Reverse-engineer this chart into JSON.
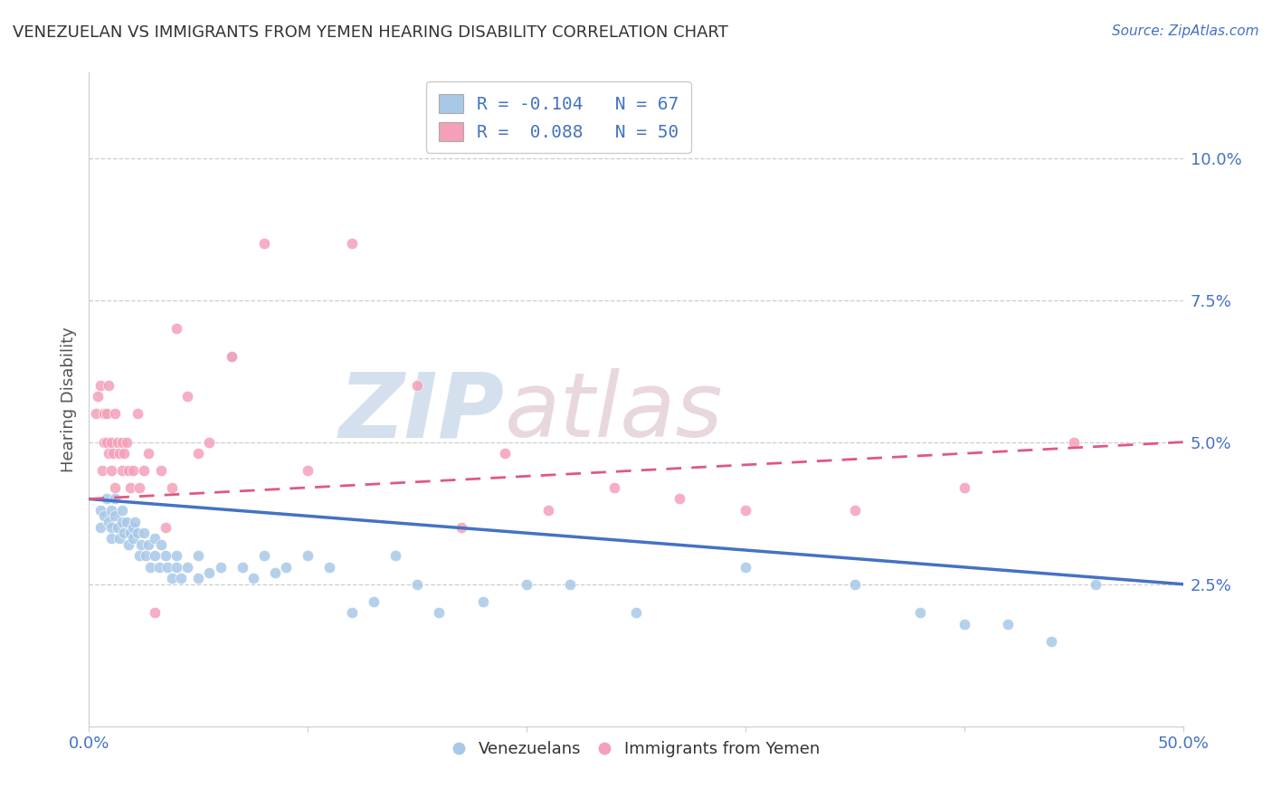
{
  "title": "VENEZUELAN VS IMMIGRANTS FROM YEMEN HEARING DISABILITY CORRELATION CHART",
  "source": "Source: ZipAtlas.com",
  "ylabel": "Hearing Disability",
  "right_yticks": [
    "2.5%",
    "5.0%",
    "7.5%",
    "10.0%"
  ],
  "right_ytick_vals": [
    0.025,
    0.05,
    0.075,
    0.1
  ],
  "xlim": [
    0.0,
    0.5
  ],
  "ylim": [
    0.0,
    0.115
  ],
  "legend_label1": "R = -0.104   N = 67",
  "legend_label2": "R =  0.088   N = 50",
  "legend_bottom_label1": "Venezuelans",
  "legend_bottom_label2": "Immigrants from Yemen",
  "blue_color": "#a8c8e8",
  "pink_color": "#f4a0b8",
  "blue_line_color": "#4472c4",
  "pink_line_color": "#e05880",
  "venezuelan_x": [
    0.005,
    0.005,
    0.007,
    0.008,
    0.009,
    0.01,
    0.01,
    0.01,
    0.012,
    0.012,
    0.013,
    0.014,
    0.015,
    0.015,
    0.016,
    0.017,
    0.018,
    0.019,
    0.02,
    0.02,
    0.021,
    0.022,
    0.023,
    0.024,
    0.025,
    0.026,
    0.027,
    0.028,
    0.03,
    0.03,
    0.032,
    0.033,
    0.035,
    0.036,
    0.038,
    0.04,
    0.04,
    0.042,
    0.045,
    0.05,
    0.05,
    0.055,
    0.06,
    0.065,
    0.07,
    0.075,
    0.08,
    0.085,
    0.09,
    0.1,
    0.11,
    0.12,
    0.13,
    0.14,
    0.15,
    0.16,
    0.18,
    0.2,
    0.22,
    0.25,
    0.3,
    0.35,
    0.38,
    0.4,
    0.42,
    0.44,
    0.46
  ],
  "venezuelan_y": [
    0.038,
    0.035,
    0.037,
    0.04,
    0.036,
    0.038,
    0.033,
    0.035,
    0.037,
    0.04,
    0.035,
    0.033,
    0.036,
    0.038,
    0.034,
    0.036,
    0.032,
    0.034,
    0.035,
    0.033,
    0.036,
    0.034,
    0.03,
    0.032,
    0.034,
    0.03,
    0.032,
    0.028,
    0.033,
    0.03,
    0.028,
    0.032,
    0.03,
    0.028,
    0.026,
    0.028,
    0.03,
    0.026,
    0.028,
    0.03,
    0.026,
    0.027,
    0.028,
    0.065,
    0.028,
    0.026,
    0.03,
    0.027,
    0.028,
    0.03,
    0.028,
    0.02,
    0.022,
    0.03,
    0.025,
    0.02,
    0.022,
    0.025,
    0.025,
    0.02,
    0.028,
    0.025,
    0.02,
    0.018,
    0.018,
    0.015,
    0.025
  ],
  "yemen_x": [
    0.003,
    0.004,
    0.005,
    0.006,
    0.007,
    0.007,
    0.008,
    0.008,
    0.009,
    0.009,
    0.01,
    0.01,
    0.011,
    0.012,
    0.012,
    0.013,
    0.014,
    0.015,
    0.015,
    0.016,
    0.017,
    0.018,
    0.019,
    0.02,
    0.022,
    0.023,
    0.025,
    0.027,
    0.03,
    0.033,
    0.035,
    0.038,
    0.04,
    0.045,
    0.05,
    0.055,
    0.065,
    0.08,
    0.1,
    0.12,
    0.15,
    0.17,
    0.19,
    0.21,
    0.24,
    0.27,
    0.3,
    0.35,
    0.4,
    0.45
  ],
  "yemen_y": [
    0.055,
    0.058,
    0.06,
    0.045,
    0.055,
    0.05,
    0.05,
    0.055,
    0.048,
    0.06,
    0.045,
    0.05,
    0.048,
    0.055,
    0.042,
    0.05,
    0.048,
    0.045,
    0.05,
    0.048,
    0.05,
    0.045,
    0.042,
    0.045,
    0.055,
    0.042,
    0.045,
    0.048,
    0.02,
    0.045,
    0.035,
    0.042,
    0.07,
    0.058,
    0.048,
    0.05,
    0.065,
    0.085,
    0.045,
    0.085,
    0.06,
    0.035,
    0.048,
    0.038,
    0.042,
    0.04,
    0.038,
    0.038,
    0.042,
    0.05
  ]
}
